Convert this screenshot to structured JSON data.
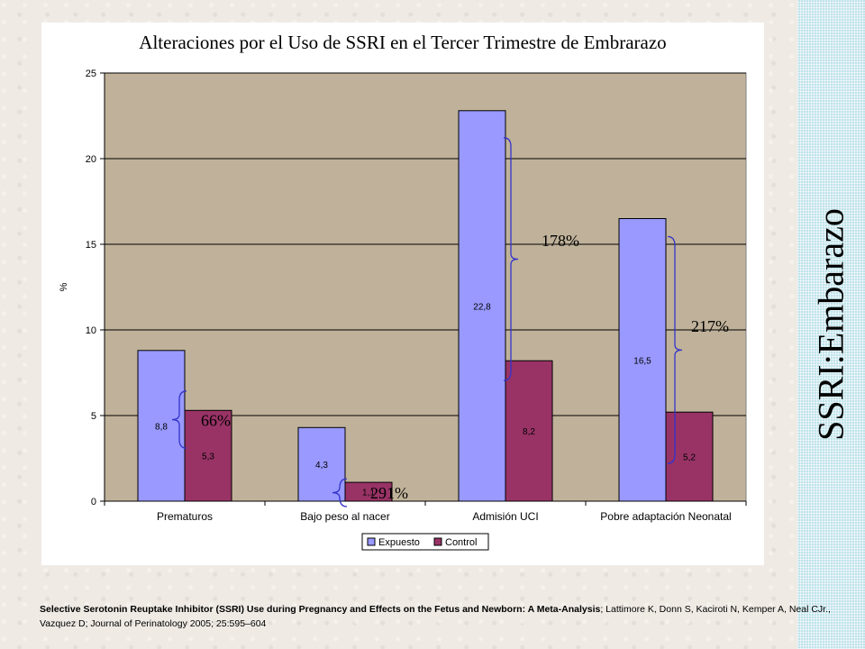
{
  "side_title": "SSRI:Embarazo",
  "citation": {
    "title": "Selective Serotonin Reuptake Inhibitor (SSRI) Use during Pregnancy and Effects on the Fetus and Newborn: A Meta-Analysis",
    "rest": "; Lattimore K, Donn S, Kaciroti N, Kemper A, Neal CJr., Vazquez D; Journal of Perinatology 2005; 25:595–604"
  },
  "colors": {
    "plot_background": "#c0b29a",
    "expuesto": "#9999ff",
    "control": "#993366",
    "brace": "#3333cc"
  },
  "chart_data": {
    "type": "bar",
    "title": "Alteraciones por el Uso de SSRI en el Tercer Trimestre de Embrarazo",
    "ylabel": "%",
    "ylim": [
      0,
      25
    ],
    "yticks": [
      0,
      5,
      10,
      15,
      20,
      25
    ],
    "grid": true,
    "legend": "bottom",
    "categories": [
      "Prematuros",
      "Bajo peso al nacer",
      "Admisión UCI",
      "Pobre adaptación Neonatal"
    ],
    "series": [
      {
        "name": "Expuesto",
        "values": [
          8.8,
          4.3,
          22.8,
          16.5
        ],
        "labels": [
          "8,8",
          "4,3",
          "22,8",
          "16,5"
        ]
      },
      {
        "name": "Control",
        "values": [
          5.3,
          1.1,
          8.2,
          5.2
        ],
        "labels": [
          "5,3",
          "1,1",
          "8,2",
          "5,2"
        ]
      }
    ],
    "annotations": [
      "66%",
      "291%",
      "178%",
      "217%"
    ]
  }
}
